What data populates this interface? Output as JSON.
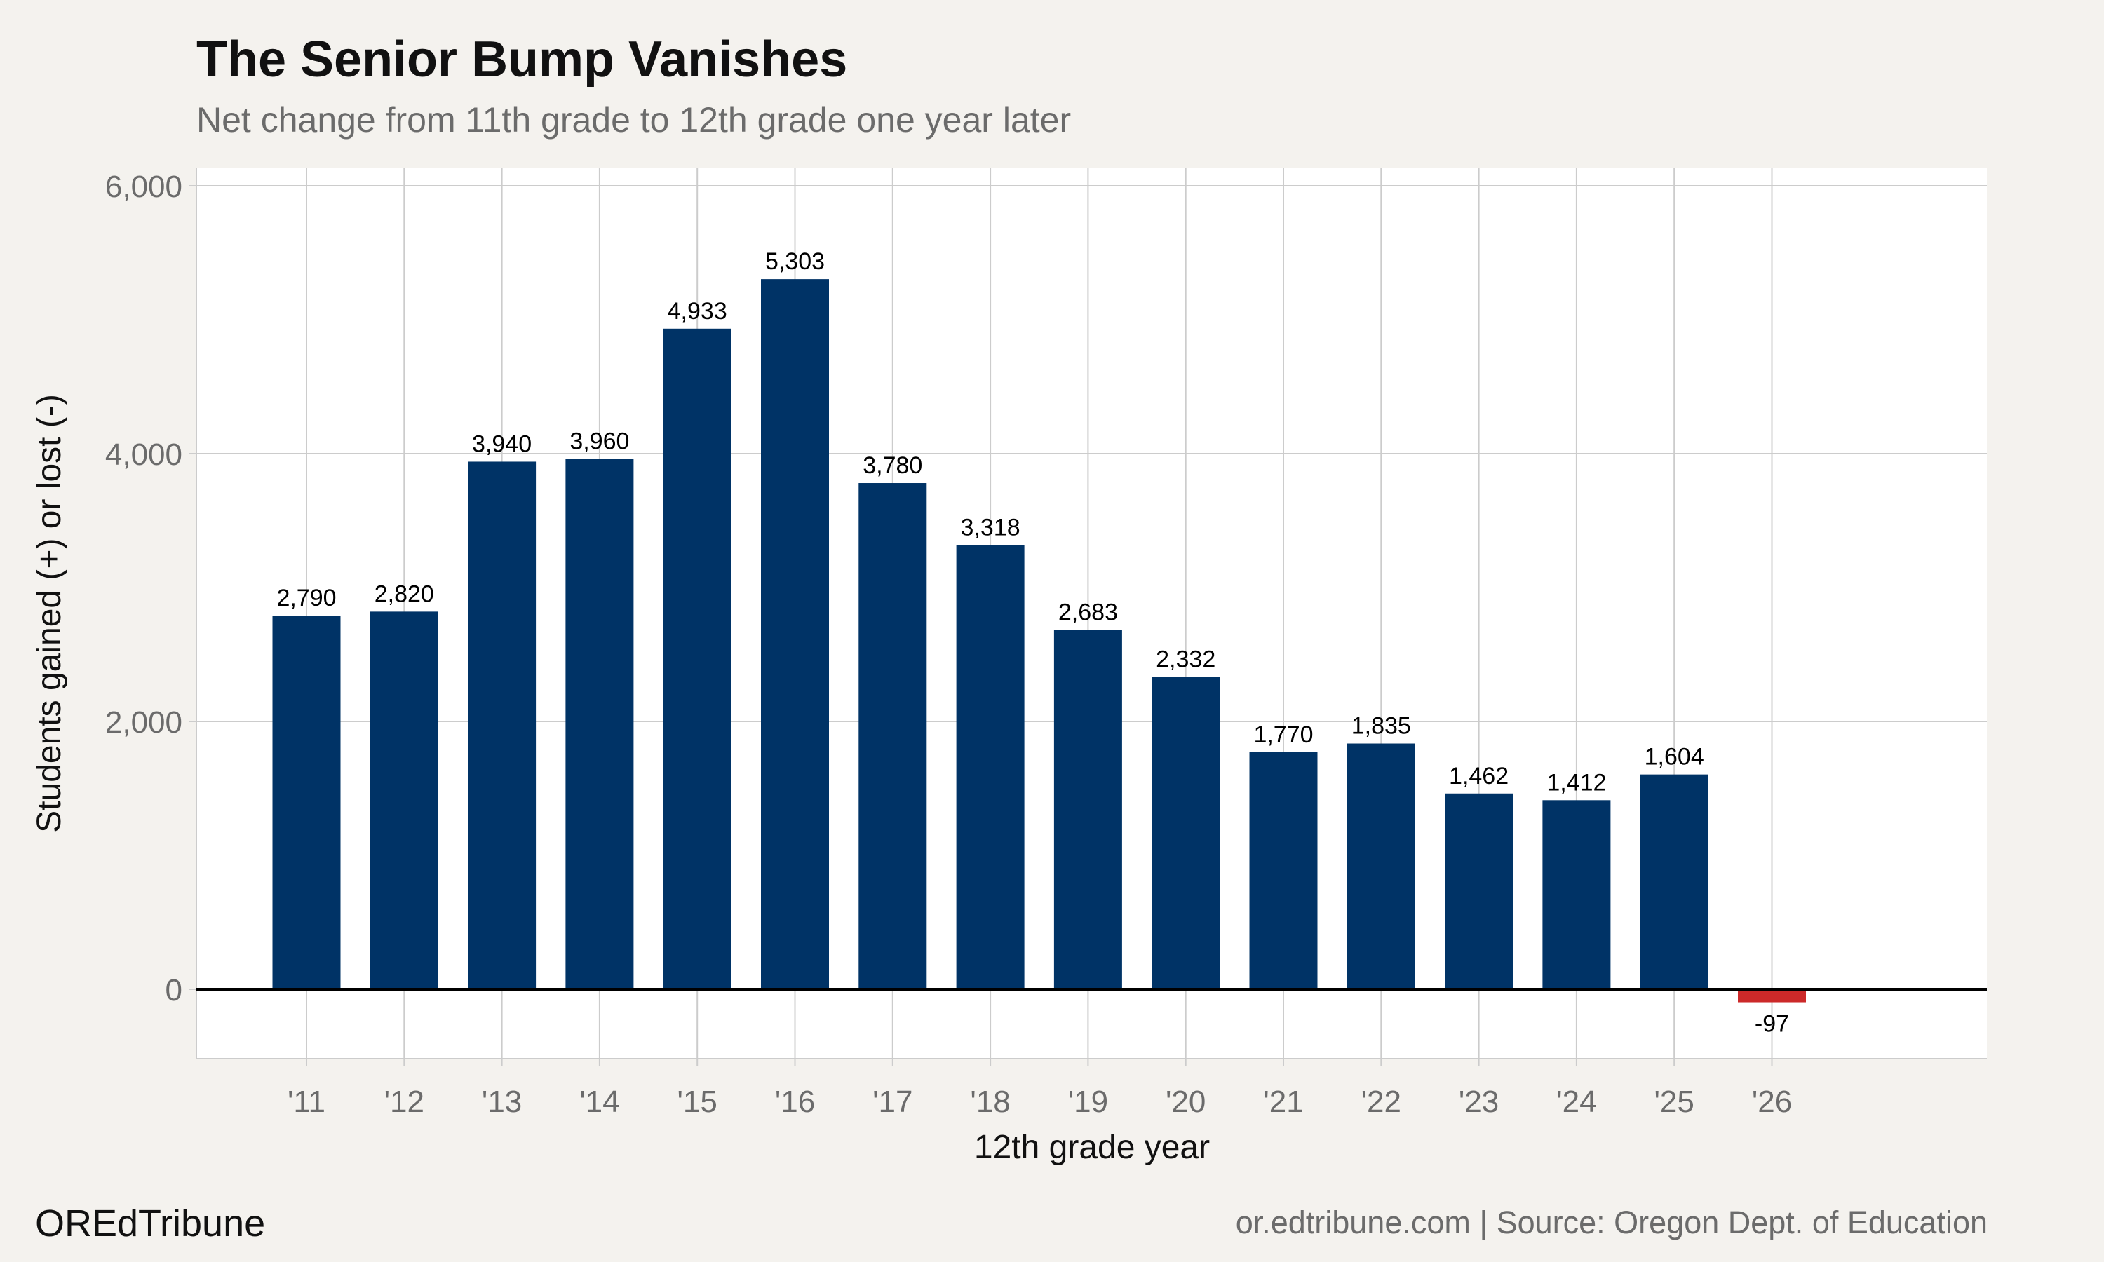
{
  "header": {
    "title": "The Senior Bump Vanishes",
    "subtitle": "Net change from 11th grade to 12th grade one year later"
  },
  "footer": {
    "brand": "OREdTribune",
    "source": "or.edtribune.com | Source: Oregon Dept. of Education"
  },
  "colors": {
    "background": "#f4f2ee",
    "panel": "#ffffff",
    "grid": "#cccccc",
    "positive_bar": "#003366",
    "negative_bar": "#cc2929",
    "zero_line": "#000000"
  },
  "chart_data": {
    "type": "bar",
    "title": "The Senior Bump Vanishes",
    "subtitle": "Net change from 11th grade to 12th grade one year later",
    "xlabel": "12th grade year",
    "ylabel": "Students gained (+) or lost (-)",
    "categories": [
      "'11",
      "'12",
      "'13",
      "'14",
      "'15",
      "'16",
      "'17",
      "'18",
      "'19",
      "'20",
      "'21",
      "'22",
      "'23",
      "'24",
      "'25",
      "'26"
    ],
    "values": [
      2790,
      2820,
      3940,
      3960,
      4933,
      5303,
      3780,
      3318,
      2683,
      2332,
      1770,
      1835,
      1462,
      1412,
      1604,
      -97
    ],
    "value_labels": [
      "2,790",
      "2,820",
      "3,940",
      "3,960",
      "4,933",
      "5,303",
      "3,780",
      "3,318",
      "2,683",
      "2,332",
      "1,770",
      "1,835",
      "1,462",
      "1,412",
      "1,604",
      "-97"
    ],
    "yticks": [
      0,
      2000,
      4000,
      6000
    ],
    "ytick_labels": [
      "0",
      "2,000",
      "4,000",
      "6,000"
    ],
    "ylim": [
      -530,
      6000
    ],
    "grid": true,
    "legend": "none"
  }
}
